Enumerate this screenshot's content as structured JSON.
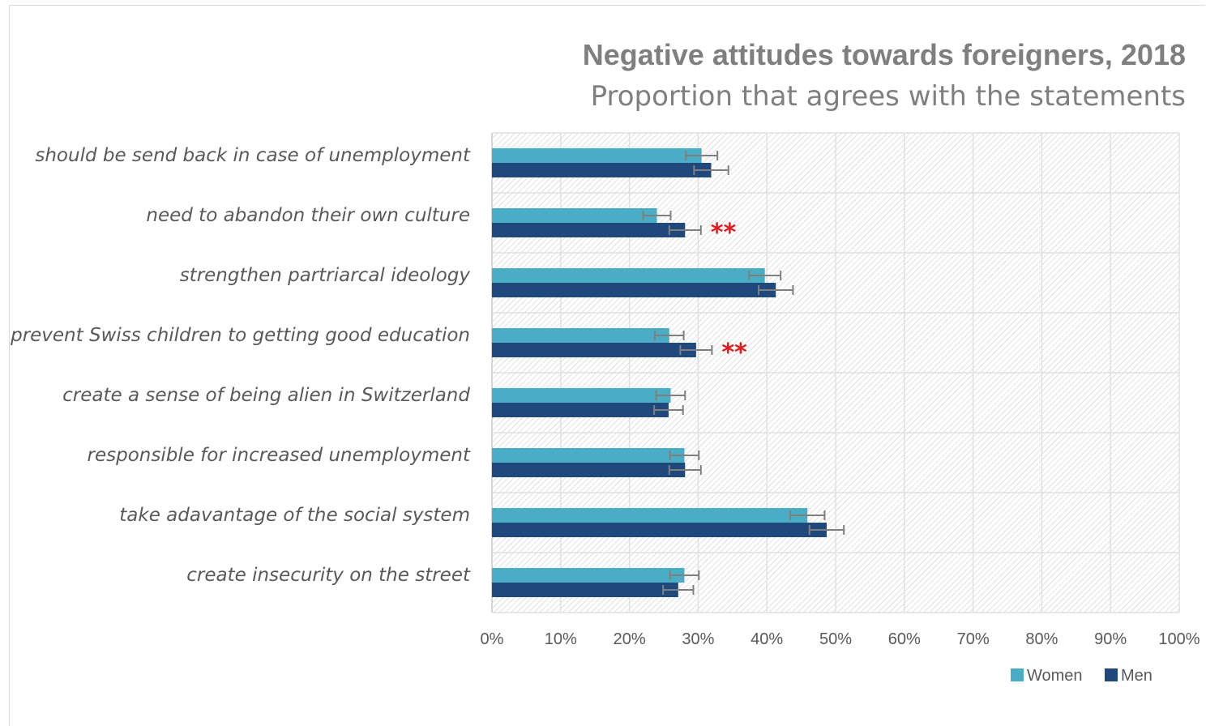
{
  "chart_data": {
    "type": "bar",
    "orientation": "horizontal",
    "title": "Negative attitudes towards foreigners, 2018",
    "subtitle": "Proportion that agrees with the statements",
    "categories": [
      "should be send back in case of unemployment",
      "need to abandon their own culture",
      "strengthen partriarcal ideology",
      "prevent Swiss children to getting good education",
      "create a sense of being alien in Switzerland",
      "responsible for increased unemployment",
      "take adavantage of the social system",
      "create insecurity on the street"
    ],
    "series": [
      {
        "name": "Women",
        "color": "#4bacc6",
        "values": [
          30.5,
          24.0,
          39.7,
          25.8,
          26.0,
          28.0,
          45.9,
          28.0
        ],
        "error": [
          2.3,
          2.0,
          2.3,
          2.1,
          2.1,
          2.1,
          2.5,
          2.1
        ]
      },
      {
        "name": "Men",
        "color": "#1f497d",
        "values": [
          31.9,
          28.1,
          41.3,
          29.7,
          25.7,
          28.1,
          48.7,
          27.1
        ],
        "error": [
          2.5,
          2.3,
          2.5,
          2.3,
          2.1,
          2.3,
          2.5,
          2.2
        ]
      }
    ],
    "annotations": [
      {
        "category_index": 1,
        "text": "**"
      },
      {
        "category_index": 3,
        "text": "**"
      }
    ],
    "xticks": [
      "0%",
      "10%",
      "20%",
      "30%",
      "40%",
      "50%",
      "60%",
      "70%",
      "80%",
      "90%",
      "100%"
    ],
    "xlim": [
      0,
      100
    ],
    "xunit": "%",
    "grid": true,
    "legend_position": "bottom-right",
    "error_bar_color": "#7f7f7f",
    "annotation_color": "#e41a1c",
    "plot_fill_pattern": "diagonal-hatch"
  }
}
